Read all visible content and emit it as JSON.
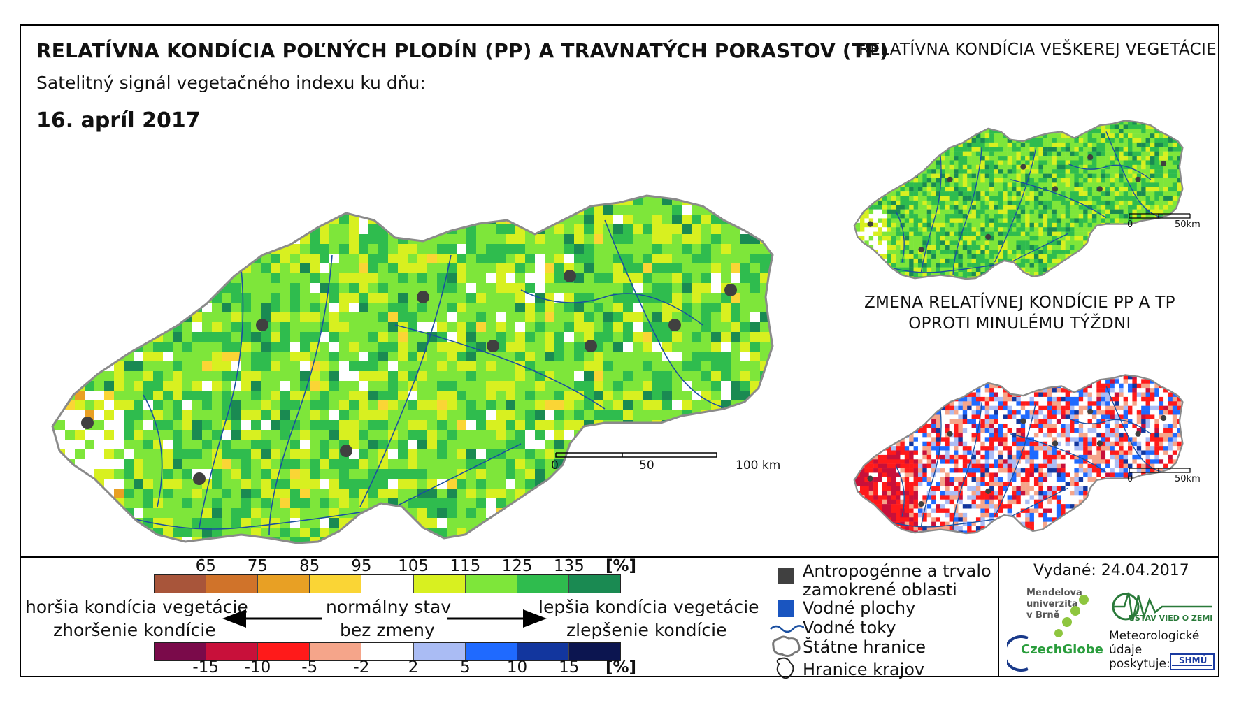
{
  "header": {
    "main_title": "RELATÍVNA KONDÍCIA POĽNÝCH PLODÍN (PP) A TRAVNATÝCH PORASTOV (TP)",
    "subtitle": "Satelitný signál vegetačného indexu ku dňu:",
    "date": "16. apríl 2017",
    "title_right": "RELATÍVNA KONDÍCIA VEŠKEREJ VEGETÁCIE",
    "title_change_1": "ZMENA RELATÍVNEJ KONDÍCIE PP A TP",
    "title_change_2": "OPROTI MINULÉMU TÝŽDNI"
  },
  "scalebars": {
    "main": {
      "t0": "0",
      "t1": "50",
      "t2": "100 km"
    },
    "small_top": {
      "t0": "0",
      "t1": "50km"
    },
    "small_bottom": {
      "t0": "0",
      "t1": "50km"
    }
  },
  "legend": {
    "condition_ticks": [
      "65",
      "75",
      "85",
      "95",
      "105",
      "115",
      "125",
      "135"
    ],
    "condition_unit": "[%]",
    "condition_colors": [
      "#a8553a",
      "#d0732a",
      "#e8a024",
      "#fad535",
      "#ffffff",
      "#d8f020",
      "#7ee63a",
      "#2fbc4e",
      "#1a8a52"
    ],
    "change_ticks": [
      "-15",
      "-10",
      "-5",
      "-2",
      "2",
      "5",
      "10",
      "15"
    ],
    "change_unit": "[%]",
    "change_colors": [
      "#7a0a4a",
      "#c8103a",
      "#ff1a1a",
      "#f5a58a",
      "#ffffff",
      "#aabcf4",
      "#1f6aff",
      "#12369e",
      "#0c1550"
    ],
    "worse_condition": "horšia kondícia vegetácie",
    "worse_change": "zhoršenie kondície",
    "normal_state": "normálny stav",
    "no_change": "bez zmeny",
    "better_condition": "lepšia kondícia vegetácie",
    "better_change": "zlepšenie kondície"
  },
  "symbols": {
    "anthro_1": "Antropogénne a trvalo",
    "anthro_2": "zamokrené oblasti",
    "water_bodies": "Vodné plochy",
    "water_streams": "Vodné toky",
    "state_borders": "Štátne hranice",
    "region_borders": "Hranice krajov",
    "colors": {
      "anthro": "#404040",
      "water": "#1a55c0",
      "river": "#1a4fa0"
    }
  },
  "credits": {
    "issued": "Vydané: 24.04.2017",
    "mendel": "Mendelova\nuniverzita\nv Brně",
    "czechglobe": "CzechGlobe",
    "ustav": "ÚSTAV VIED O ZEMI",
    "meteo": "Meteorologické\núdaje\nposkytuje:",
    "shmu": "SHMÚ"
  }
}
